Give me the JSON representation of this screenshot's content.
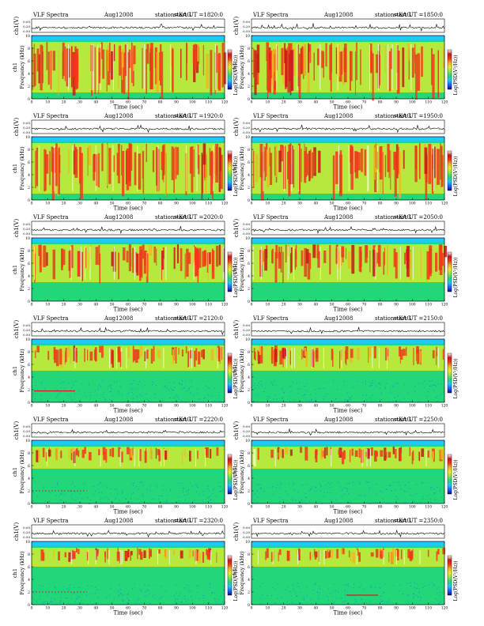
{
  "labels": {
    "tick_ch1": [
      "0.00",
      "0.20",
      "0.50"
    ]
  },
  "colors": {
    "spectrogram_scale": [
      "#0a0a7a",
      "#1f5fff",
      "#20c8ff",
      "#22d67a",
      "#86e34a",
      "#e8ee2a",
      "#f2b51e",
      "#ee3a1a",
      "#c8161a",
      "#ffffff"
    ],
    "trace": "#000000",
    "burst_line": "#d41e1e",
    "dash_line": "#c81e1e"
  },
  "chart_data": [
    {
      "type": "heatmap",
      "title": "VLF Spectra",
      "date": "Aug12008",
      "station": "station=KAG",
      "start": "start  UT  =1820:0",
      "xlabel": "Time  (sec)",
      "ylabel": "Frequency  (kHz)",
      "trace_ylabel": "ch1(V)",
      "colorbar_label": "Log(PSD(V²/Hz))",
      "xlim": [
        0,
        120
      ],
      "ylim": [
        0,
        10
      ],
      "xticks": [
        0,
        10,
        20,
        30,
        40,
        50,
        60,
        70,
        80,
        90,
        100,
        110,
        120
      ],
      "yticks": [
        0,
        2,
        4,
        6,
        8,
        10
      ],
      "activity_band_khz": [
        1,
        9
      ],
      "intensity": "very high"
    },
    {
      "type": "heatmap",
      "title": "VLF Spectra",
      "date": "Aug12008",
      "station": "station=KAG",
      "start": "start  UT  =1850:0",
      "xlabel": "Time  (sec)",
      "ylabel": "Frequency  (kHz)",
      "trace_ylabel": "ch1(V)",
      "colorbar_label": "Log(PSD(V²/Hz))",
      "xlim": [
        0,
        120
      ],
      "ylim": [
        0,
        10
      ],
      "xticks": [
        0,
        10,
        20,
        30,
        40,
        50,
        60,
        70,
        80,
        90,
        100,
        110,
        120
      ],
      "yticks": [
        0,
        2,
        4,
        6,
        8,
        10
      ],
      "activity_band_khz": [
        1,
        9
      ],
      "intensity": "very high"
    },
    {
      "type": "heatmap",
      "title": "VLF Spectra",
      "date": "Aug12008",
      "station": "station=KAG",
      "start": "start  UT  =1920:0",
      "xlabel": "Time  (sec)",
      "ylabel": "Frequency  (kHz)",
      "trace_ylabel": "ch1(V)",
      "colorbar_label": "Log(PSD(V²/Hz))",
      "xlim": [
        0,
        120
      ],
      "ylim": [
        0,
        10
      ],
      "xticks": [
        0,
        10,
        20,
        30,
        40,
        50,
        60,
        70,
        80,
        90,
        100,
        110,
        120
      ],
      "yticks": [
        0,
        2,
        4,
        6,
        8,
        10
      ],
      "activity_band_khz": [
        1,
        9
      ],
      "intensity": "very high"
    },
    {
      "type": "heatmap",
      "title": "VLF Spectra",
      "date": "Aug12008",
      "station": "station=KAG",
      "start": "start  UT  =1950:0",
      "xlabel": "Time  (sec)",
      "ylabel": "Frequency  (kHz)",
      "trace_ylabel": "ch1(V)",
      "colorbar_label": "Log(PSD(V²/Hz))",
      "xlim": [
        0,
        120
      ],
      "ylim": [
        0,
        10
      ],
      "xticks": [
        0,
        10,
        20,
        30,
        40,
        50,
        60,
        70,
        80,
        90,
        100,
        110,
        120
      ],
      "yticks": [
        0,
        2,
        4,
        6,
        8,
        10
      ],
      "activity_band_khz": [
        1,
        9
      ],
      "intensity": "very high"
    },
    {
      "type": "heatmap",
      "title": "VLF Spectra",
      "date": "Aug12008",
      "station": "station=KAG",
      "start": "start  UT  =2020:0",
      "xlabel": "Time  (sec)",
      "ylabel": "Frequency  (kHz)",
      "trace_ylabel": "ch1(V)",
      "colorbar_label": "Log(PSD(V²/Hz))",
      "xlim": [
        0,
        120
      ],
      "ylim": [
        0,
        10
      ],
      "xticks": [
        0,
        10,
        20,
        30,
        40,
        50,
        60,
        70,
        80,
        90,
        100,
        110,
        120
      ],
      "yticks": [
        0,
        2,
        4,
        6,
        8,
        10
      ],
      "activity_band_khz": [
        3,
        9
      ],
      "intensity": "high"
    },
    {
      "type": "heatmap",
      "title": "VLF Spectra",
      "date": "Aug12008",
      "station": "station=KAG",
      "start": "start  UT  =2050:0",
      "xlabel": "Time  (sec)",
      "ylabel": "Frequency  (kHz)",
      "trace_ylabel": "ch1(V)",
      "colorbar_label": "Log(PSD(V²/Hz))",
      "xlim": [
        0,
        120
      ],
      "ylim": [
        0,
        10
      ],
      "xticks": [
        0,
        10,
        20,
        30,
        40,
        50,
        60,
        70,
        80,
        90,
        100,
        110,
        120
      ],
      "yticks": [
        0,
        2,
        4,
        6,
        8,
        10
      ],
      "activity_band_khz": [
        3,
        9
      ],
      "intensity": "high"
    },
    {
      "type": "heatmap",
      "title": "VLF Spectra",
      "date": "Aug12008",
      "station": "station=KAG",
      "start": "start  UT  =2120:0",
      "xlabel": "Time  (sec)",
      "ylabel": "Frequency  (kHz)",
      "trace_ylabel": "ch1(V)",
      "colorbar_label": "Log(PSD(V²/Hz))",
      "xlim": [
        0,
        120
      ],
      "ylim": [
        0,
        10
      ],
      "xticks": [
        0,
        10,
        20,
        30,
        40,
        50,
        60,
        70,
        80,
        90,
        100,
        110,
        120
      ],
      "yticks": [
        0,
        2,
        4,
        6,
        8,
        10
      ],
      "activity_band_khz": [
        5,
        9
      ],
      "intensity": "medium"
    },
    {
      "type": "heatmap",
      "title": "VLF Spectra",
      "date": "Aug12008",
      "station": "station=KAG",
      "start": "start  UT  =2150:0",
      "xlabel": "Time  (sec)",
      "ylabel": "Frequency  (kHz)",
      "trace_ylabel": "ch1(V)",
      "colorbar_label": "Log(PSD(V²/Hz))",
      "xlim": [
        0,
        120
      ],
      "ylim": [
        0,
        10
      ],
      "xticks": [
        0,
        10,
        20,
        30,
        40,
        50,
        60,
        70,
        80,
        90,
        100,
        110,
        120
      ],
      "yticks": [
        0,
        2,
        4,
        6,
        8,
        10
      ],
      "activity_band_khz": [
        5,
        9
      ],
      "intensity": "medium"
    },
    {
      "type": "heatmap",
      "title": "VLF Spectra",
      "date": "Aug12008",
      "station": "station=KAG",
      "start": "start  UT  =2220:0",
      "xlabel": "Time  (sec)",
      "ylabel": "Frequency  (kHz)",
      "trace_ylabel": "ch1(V)",
      "colorbar_label": "Log(PSD(V²/Hz))",
      "xlim": [
        0,
        120
      ],
      "ylim": [
        0,
        10
      ],
      "xticks": [
        0,
        10,
        20,
        30,
        40,
        50,
        60,
        70,
        80,
        90,
        100,
        110,
        120
      ],
      "yticks": [
        0,
        2,
        4,
        6,
        8,
        10
      ],
      "activity_band_khz": [
        5.5,
        9
      ],
      "intensity": "medium-low"
    },
    {
      "type": "heatmap",
      "title": "VLF Spectra",
      "date": "Aug12008",
      "station": "station=KAG",
      "start": "start  UT  =2250:0",
      "xlabel": "Time  (sec)",
      "ylabel": "Frequency  (kHz)",
      "trace_ylabel": "ch1(V)",
      "colorbar_label": "Log(PSD(V²/Hz))",
      "xlim": [
        0,
        120
      ],
      "ylim": [
        0,
        10
      ],
      "xticks": [
        0,
        10,
        20,
        30,
        40,
        50,
        60,
        70,
        80,
        90,
        100,
        110,
        120
      ],
      "yticks": [
        0,
        2,
        4,
        6,
        8,
        10
      ],
      "activity_band_khz": [
        5.5,
        9
      ],
      "intensity": "medium-low"
    },
    {
      "type": "heatmap",
      "title": "VLF Spectra",
      "date": "Aug12008",
      "station": "station=KAG",
      "start": "start  UT  =2320:0",
      "xlabel": "Time  (sec)",
      "ylabel": "Frequency  (kHz)",
      "trace_ylabel": "ch1(V)",
      "colorbar_label": "Log(PSD(V²/Hz))",
      "xlim": [
        0,
        120
      ],
      "ylim": [
        0,
        10
      ],
      "xticks": [
        0,
        10,
        20,
        30,
        40,
        50,
        60,
        70,
        80,
        90,
        100,
        110,
        120
      ],
      "yticks": [
        0,
        2,
        4,
        6,
        8,
        10
      ],
      "activity_band_khz": [
        6,
        9
      ],
      "intensity": "medium-low"
    },
    {
      "type": "heatmap",
      "title": "VLF Spectra",
      "date": "Aug12008",
      "station": "station=KAG",
      "start": "start  UT  =2350:0",
      "xlabel": "Time  (sec)",
      "ylabel": "Frequency  (kHz)",
      "trace_ylabel": "ch1(V)",
      "colorbar_label": "Log(PSD(V²/Hz))",
      "xlim": [
        0,
        120
      ],
      "ylim": [
        0,
        10
      ],
      "xticks": [
        0,
        10,
        20,
        30,
        40,
        50,
        60,
        70,
        80,
        90,
        100,
        110,
        120
      ],
      "yticks": [
        0,
        2,
        4,
        6,
        8,
        10
      ],
      "activity_band_khz": [
        6,
        9
      ],
      "intensity": "medium-low"
    }
  ]
}
